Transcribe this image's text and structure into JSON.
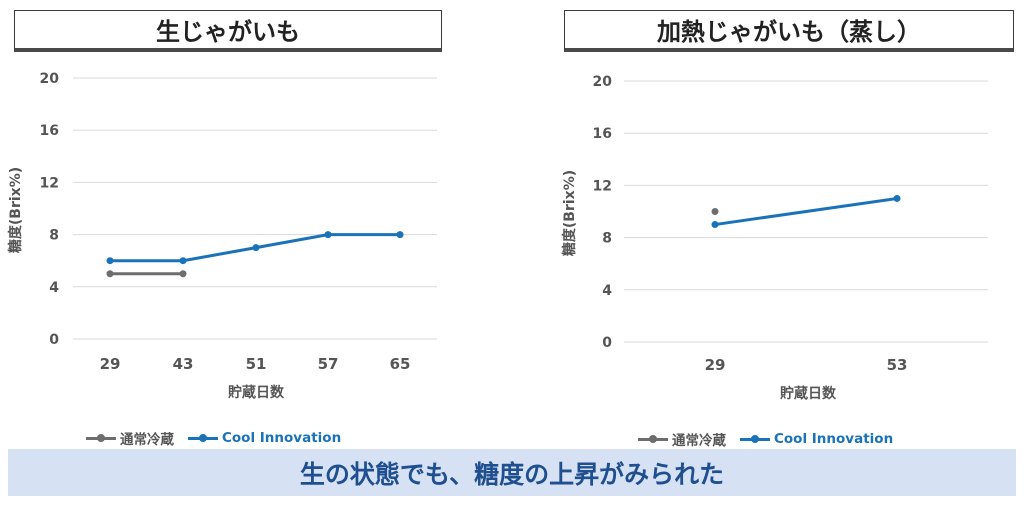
{
  "titles": {
    "left": "生じゃがいも",
    "right": "加熱じゃがいも（蒸し）"
  },
  "banner": "生の状態でも、糖度の上昇がみられた",
  "legend": {
    "normal": "通常冷蔵",
    "cool": "Cool Innovation"
  },
  "colors": {
    "normal": "#6d6d6d",
    "cool": "#1a72b8",
    "grid": "#d9d9d9",
    "tick": "#555555"
  },
  "chart_data": [
    {
      "type": "line",
      "xlabel": "貯蔵日数",
      "ylabel": "糖度(Brix%)",
      "categories": [
        "29",
        "43",
        "51",
        "57",
        "65"
      ],
      "ylim": [
        0,
        20
      ],
      "yticks": [
        0,
        4,
        8,
        12,
        16,
        20
      ],
      "grid": true,
      "legend_position": "bottom-left",
      "series": [
        {
          "name": "通常冷蔵",
          "values": [
            5,
            5,
            null,
            null,
            null
          ]
        },
        {
          "name": "Cool Innovation",
          "values": [
            6,
            6,
            7,
            8,
            8
          ]
        }
      ]
    },
    {
      "type": "line",
      "xlabel": "貯蔵日数",
      "ylabel": "糖度(Brix%)",
      "categories": [
        "29",
        "53"
      ],
      "ylim": [
        0,
        20
      ],
      "yticks": [
        0,
        4,
        8,
        12,
        16,
        20
      ],
      "grid": true,
      "legend_position": "bottom-left",
      "series": [
        {
          "name": "通常冷蔵",
          "values": [
            10,
            null
          ]
        },
        {
          "name": "Cool Innovation",
          "values": [
            9,
            11
          ]
        }
      ]
    }
  ]
}
